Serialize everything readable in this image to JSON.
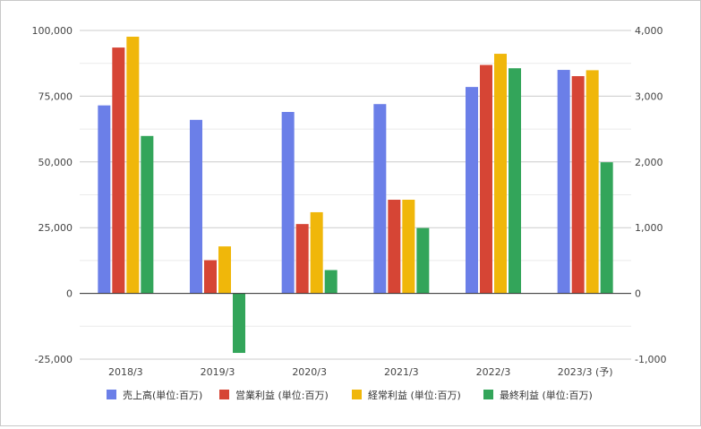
{
  "chart_data": {
    "type": "bar",
    "categories": [
      "2018/3",
      "2019/3",
      "2020/3",
      "2021/3",
      "2022/3",
      "2023/3 (予)"
    ],
    "left_axis": {
      "ticks": [
        "100,000",
        "75,000",
        "50,000",
        "25,000",
        "0",
        "-25,000"
      ],
      "tick_values": [
        100000,
        75000,
        50000,
        25000,
        0,
        -25000
      ],
      "ylim": [
        -25000,
        100000
      ]
    },
    "right_axis": {
      "ticks": [
        "4,000",
        "3,000",
        "2,000",
        "1,000",
        "0",
        "-1,000"
      ],
      "tick_values": [
        4000,
        3000,
        2000,
        1000,
        0,
        -1000
      ],
      "ylim": [
        -1000,
        4000
      ]
    },
    "series": [
      {
        "name": "売上高(単位:百万)",
        "axis": "left",
        "color": "#6b7fe8",
        "values": [
          71500,
          66000,
          69000,
          72000,
          78500,
          85000
        ]
      },
      {
        "name": "営業利益 (単位:百万)",
        "axis": "right",
        "color": "#d64535",
        "values": [
          3740,
          505,
          1055,
          1425,
          3475,
          3305
        ]
      },
      {
        "name": "経常利益 (単位:百万)",
        "axis": "right",
        "color": "#f0b70a",
        "values": [
          3905,
          715,
          1235,
          1425,
          3645,
          3395
        ]
      },
      {
        "name": "最終利益 (単位:百万)",
        "axis": "right",
        "color": "#33a55a",
        "values": [
          2395,
          -905,
          355,
          995,
          3425,
          1995
        ]
      }
    ],
    "grid": true,
    "legend_position": "bottom"
  }
}
